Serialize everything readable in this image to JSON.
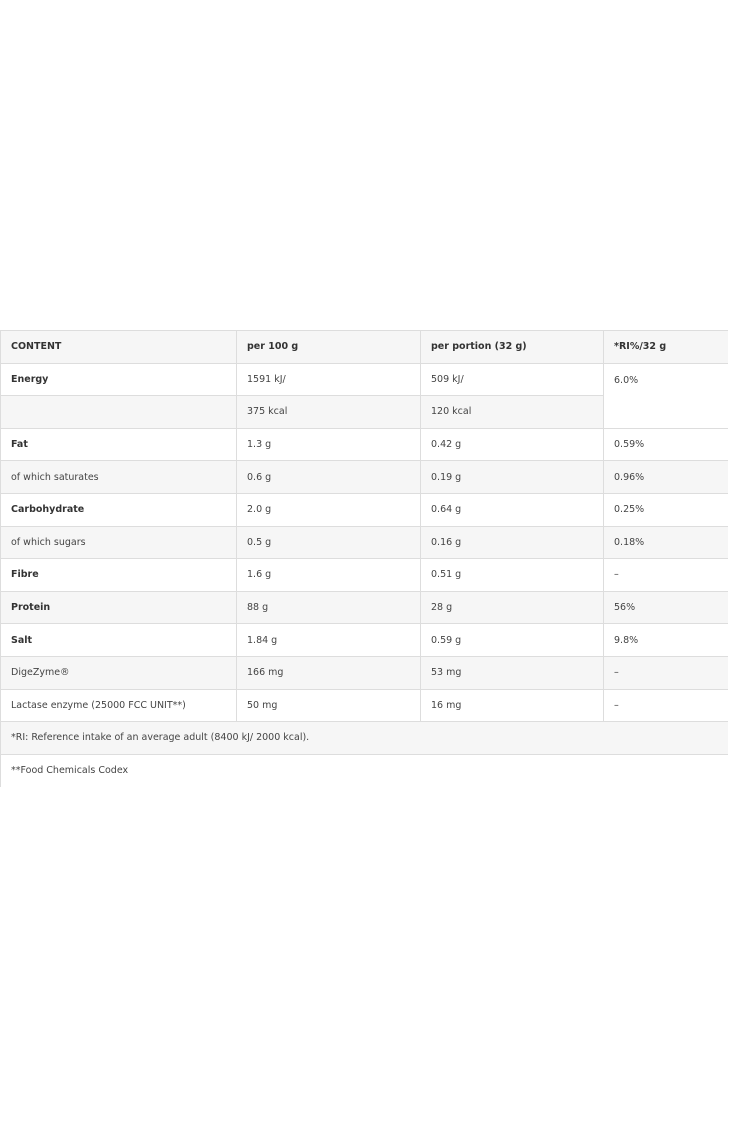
{
  "table": {
    "headers": [
      "CONTENT",
      "per 100 g",
      "per portion (32 g)",
      "*RI%/32 g"
    ],
    "energy": {
      "label": "Energy",
      "per100_kj": "1591 kJ/",
      "per100_kcal": "375 kcal",
      "portion_kj": "509 kJ/",
      "portion_kcal": "120 kcal",
      "ri": "6.0%"
    },
    "rows": [
      {
        "label": "Fat",
        "bold": true,
        "per100": "1.3 g",
        "portion": "0.42 g",
        "ri": "0.59%"
      },
      {
        "label": "of which saturates",
        "bold": false,
        "per100": "0.6 g",
        "portion": "0.19 g",
        "ri": "0.96%"
      },
      {
        "label": "Carbohydrate",
        "bold": true,
        "per100": "2.0 g",
        "portion": "0.64 g",
        "ri": "0.25%"
      },
      {
        "label": "of which sugars",
        "bold": false,
        "per100": "0.5 g",
        "portion": "0.16 g",
        "ri": "0.18%"
      },
      {
        "label": "Fibre",
        "bold": true,
        "per100": "1.6 g",
        "portion": "0.51 g",
        "ri": "–"
      },
      {
        "label": "Protein",
        "bold": true,
        "per100": "88 g",
        "portion": "28 g",
        "ri": "56%"
      },
      {
        "label": "Salt",
        "bold": true,
        "per100": "1.84 g",
        "portion": "0.59 g",
        "ri": "9.8%"
      },
      {
        "label": "DigeZyme®",
        "bold": false,
        "per100": "166 mg",
        "portion": "53 mg",
        "ri": "–"
      },
      {
        "label": "Lactase enzyme (25000 FCC UNIT**)",
        "bold": false,
        "per100": "50 mg",
        "portion": "16 mg",
        "ri": "–"
      }
    ],
    "footnotes": [
      "*RI: Reference intake of an average adult (8400 kJ/ 2000 kcal).",
      "**Food Chemicals Codex"
    ]
  }
}
